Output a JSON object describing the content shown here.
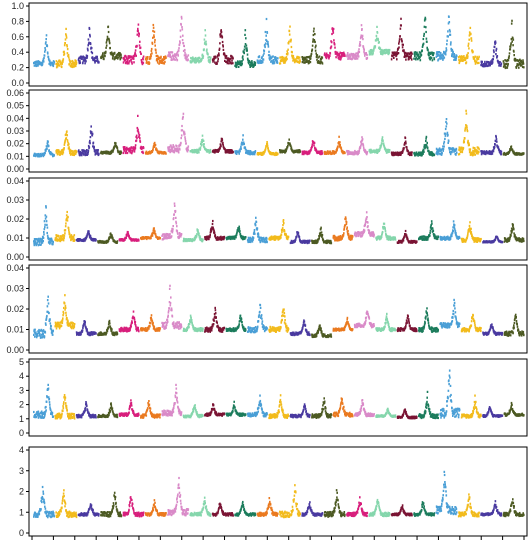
{
  "chart_data": [
    {
      "type": "scatter",
      "ylim": [
        0,
        1.0
      ],
      "yticks": [
        "0.0",
        "0.2",
        "0.4",
        "0.6",
        "0.8",
        "1.0"
      ],
      "ytick_values": [
        0,
        0.2,
        0.4,
        0.6,
        0.8,
        1.0
      ],
      "grid": false,
      "segments": [
        {
          "color": "#4a9fd6",
          "base": 0.25,
          "peak": 0.65
        },
        {
          "color": "#f2bb1c",
          "base": 0.25,
          "peak": 0.75
        },
        {
          "color": "#4a3aa0",
          "base": 0.3,
          "peak": 0.8
        },
        {
          "color": "#4d5a23",
          "base": 0.35,
          "peak": 0.82
        },
        {
          "color": "#d81f7c",
          "base": 0.3,
          "peak": 0.92
        },
        {
          "color": "#ea7a20",
          "base": 0.3,
          "peak": 0.85
        },
        {
          "color": "#d98ac8",
          "base": 0.35,
          "peak": 0.95
        },
        {
          "color": "#85d6ac",
          "base": 0.3,
          "peak": 0.7
        },
        {
          "color": "#7a1434",
          "base": 0.3,
          "peak": 0.9
        },
        {
          "color": "#1c7c5c",
          "base": 0.25,
          "peak": 0.7
        },
        {
          "color": "#4a9fd6",
          "base": 0.3,
          "peak": 0.85
        },
        {
          "color": "#f2bb1c",
          "base": 0.3,
          "peak": 0.8
        },
        {
          "color": "#4d5a23",
          "base": 0.3,
          "peak": 0.8
        },
        {
          "color": "#d81f7c",
          "base": 0.35,
          "peak": 0.85
        },
        {
          "color": "#d98ac8",
          "base": 0.35,
          "peak": 0.8
        },
        {
          "color": "#85d6ac",
          "base": 0.4,
          "peak": 0.75
        },
        {
          "color": "#7a1434",
          "base": 0.35,
          "peak": 0.88
        },
        {
          "color": "#1c7c5c",
          "base": 0.35,
          "peak": 0.95
        },
        {
          "color": "#4a9fd6",
          "base": 0.35,
          "peak": 0.97
        },
        {
          "color": "#f2bb1c",
          "base": 0.3,
          "peak": 0.85
        },
        {
          "color": "#4a3aa0",
          "base": 0.25,
          "peak": 0.6
        },
        {
          "color": "#4d5a23",
          "base": 0.25,
          "peak": 0.85
        }
      ]
    },
    {
      "type": "scatter",
      "ylim": [
        0,
        0.06
      ],
      "yticks": [
        "0.00",
        "0.01",
        "0.02",
        "0.03",
        "0.04",
        "0.05",
        "0.06"
      ],
      "ytick_values": [
        0,
        0.01,
        0.02,
        0.03,
        0.04,
        0.05,
        0.06
      ],
      "grid": false,
      "segments": [
        {
          "color": "#4a9fd6",
          "base": 0.011,
          "peak": 0.024
        },
        {
          "color": "#f2bb1c",
          "base": 0.013,
          "peak": 0.035
        },
        {
          "color": "#4a3aa0",
          "base": 0.013,
          "peak": 0.038
        },
        {
          "color": "#4d5a23",
          "base": 0.013,
          "peak": 0.024
        },
        {
          "color": "#d81f7c",
          "base": 0.015,
          "peak": 0.042
        },
        {
          "color": "#ea7a20",
          "base": 0.013,
          "peak": 0.022
        },
        {
          "color": "#d98ac8",
          "base": 0.016,
          "peak": 0.048
        },
        {
          "color": "#85d6ac",
          "base": 0.014,
          "peak": 0.028
        },
        {
          "color": "#7a1434",
          "base": 0.014,
          "peak": 0.026
        },
        {
          "color": "#4a9fd6",
          "base": 0.013,
          "peak": 0.028
        },
        {
          "color": "#f2bb1c",
          "base": 0.012,
          "peak": 0.022
        },
        {
          "color": "#4d5a23",
          "base": 0.014,
          "peak": 0.025
        },
        {
          "color": "#d81f7c",
          "base": 0.013,
          "peak": 0.026
        },
        {
          "color": "#ea7a20",
          "base": 0.013,
          "peak": 0.025
        },
        {
          "color": "#d98ac8",
          "base": 0.013,
          "peak": 0.028
        },
        {
          "color": "#85d6ac",
          "base": 0.014,
          "peak": 0.028
        },
        {
          "color": "#7a1434",
          "base": 0.012,
          "peak": 0.025
        },
        {
          "color": "#1c7c5c",
          "base": 0.012,
          "peak": 0.027
        },
        {
          "color": "#4a9fd6",
          "base": 0.014,
          "peak": 0.045
        },
        {
          "color": "#f2bb1c",
          "base": 0.014,
          "peak": 0.049
        },
        {
          "color": "#4a3aa0",
          "base": 0.013,
          "peak": 0.028
        },
        {
          "color": "#4d5a23",
          "base": 0.012,
          "peak": 0.02
        }
      ]
    },
    {
      "type": "scatter",
      "ylim": [
        0,
        0.04
      ],
      "yticks": [
        "0.00",
        "0.01",
        "0.02",
        "0.03",
        "0.04"
      ],
      "ytick_values": [
        0,
        0.01,
        0.02,
        0.03,
        0.04
      ],
      "grid": false,
      "segments": [
        {
          "color": "#4a9fd6",
          "base": 0.008,
          "peak": 0.028
        },
        {
          "color": "#f2bb1c",
          "base": 0.01,
          "peak": 0.028
        },
        {
          "color": "#4a3aa0",
          "base": 0.009,
          "peak": 0.015
        },
        {
          "color": "#4d5a23",
          "base": 0.008,
          "peak": 0.014
        },
        {
          "color": "#d81f7c",
          "base": 0.009,
          "peak": 0.014
        },
        {
          "color": "#ea7a20",
          "base": 0.01,
          "peak": 0.016
        },
        {
          "color": "#d98ac8",
          "base": 0.011,
          "peak": 0.03
        },
        {
          "color": "#85d6ac",
          "base": 0.009,
          "peak": 0.016
        },
        {
          "color": "#7a1434",
          "base": 0.01,
          "peak": 0.02
        },
        {
          "color": "#1c7c5c",
          "base": 0.01,
          "peak": 0.018
        },
        {
          "color": "#4a9fd6",
          "base": 0.009,
          "peak": 0.022
        },
        {
          "color": "#f2bb1c",
          "base": 0.01,
          "peak": 0.02
        },
        {
          "color": "#4a3aa0",
          "base": 0.008,
          "peak": 0.015
        },
        {
          "color": "#4d5a23",
          "base": 0.008,
          "peak": 0.016
        },
        {
          "color": "#ea7a20",
          "base": 0.01,
          "peak": 0.024
        },
        {
          "color": "#d98ac8",
          "base": 0.012,
          "peak": 0.025
        },
        {
          "color": "#85d6ac",
          "base": 0.01,
          "peak": 0.02
        },
        {
          "color": "#7a1434",
          "base": 0.008,
          "peak": 0.014
        },
        {
          "color": "#1c7c5c",
          "base": 0.01,
          "peak": 0.02
        },
        {
          "color": "#4a9fd6",
          "base": 0.01,
          "peak": 0.02
        },
        {
          "color": "#f2bb1c",
          "base": 0.009,
          "peak": 0.02
        },
        {
          "color": "#4a3aa0",
          "base": 0.008,
          "peak": 0.012
        },
        {
          "color": "#4d5a23",
          "base": 0.009,
          "peak": 0.02
        }
      ]
    },
    {
      "type": "scatter",
      "ylim": [
        0,
        0.04
      ],
      "yticks": [
        "0.00",
        "0.01",
        "0.02",
        "0.03",
        "0.04"
      ],
      "ytick_values": [
        0,
        0.01,
        0.02,
        0.03,
        0.04
      ],
      "grid": false,
      "segments": [
        {
          "color": "#4a9fd6",
          "base": 0.008,
          "peak": 0.03
        },
        {
          "color": "#f2bb1c",
          "base": 0.012,
          "peak": 0.028
        },
        {
          "color": "#4a3aa0",
          "base": 0.008,
          "peak": 0.016
        },
        {
          "color": "#4d5a23",
          "base": 0.008,
          "peak": 0.016
        },
        {
          "color": "#d81f7c",
          "base": 0.01,
          "peak": 0.02
        },
        {
          "color": "#ea7a20",
          "base": 0.01,
          "peak": 0.018
        },
        {
          "color": "#d98ac8",
          "base": 0.012,
          "peak": 0.032
        },
        {
          "color": "#85d6ac",
          "base": 0.01,
          "peak": 0.018
        },
        {
          "color": "#7a1434",
          "base": 0.01,
          "peak": 0.022
        },
        {
          "color": "#1c7c5c",
          "base": 0.01,
          "peak": 0.018
        },
        {
          "color": "#4a9fd6",
          "base": 0.01,
          "peak": 0.025
        },
        {
          "color": "#f2bb1c",
          "base": 0.01,
          "peak": 0.025
        },
        {
          "color": "#4a3aa0",
          "base": 0.008,
          "peak": 0.016
        },
        {
          "color": "#4d5a23",
          "base": 0.007,
          "peak": 0.014
        },
        {
          "color": "#ea7a20",
          "base": 0.01,
          "peak": 0.016
        },
        {
          "color": "#d98ac8",
          "base": 0.012,
          "peak": 0.022
        },
        {
          "color": "#85d6ac",
          "base": 0.01,
          "peak": 0.018
        },
        {
          "color": "#7a1434",
          "base": 0.01,
          "peak": 0.018
        },
        {
          "color": "#1c7c5c",
          "base": 0.01,
          "peak": 0.022
        },
        {
          "color": "#4a9fd6",
          "base": 0.012,
          "peak": 0.025
        },
        {
          "color": "#f2bb1c",
          "base": 0.01,
          "peak": 0.02
        },
        {
          "color": "#4a3aa0",
          "base": 0.008,
          "peak": 0.014
        },
        {
          "color": "#4d5a23",
          "base": 0.008,
          "peak": 0.02
        }
      ]
    },
    {
      "type": "scatter",
      "ylim": [
        0,
        5
      ],
      "yticks": [
        "0",
        "1",
        "2",
        "3",
        "4",
        "5"
      ],
      "ytick_values": [
        0,
        1,
        2,
        3,
        4,
        5
      ],
      "grid": false,
      "segments": [
        {
          "color": "#4a9fd6",
          "base": 1.3,
          "peak": 3.8
        },
        {
          "color": "#f2bb1c",
          "base": 1.2,
          "peak": 3.2
        },
        {
          "color": "#4a3aa0",
          "base": 1.2,
          "peak": 2.3
        },
        {
          "color": "#4d5a23",
          "base": 1.2,
          "peak": 2.2
        },
        {
          "color": "#d81f7c",
          "base": 1.3,
          "peak": 2.4
        },
        {
          "color": "#ea7a20",
          "base": 1.2,
          "peak": 2.5
        },
        {
          "color": "#d98ac8",
          "base": 1.4,
          "peak": 3.5
        },
        {
          "color": "#85d6ac",
          "base": 1.2,
          "peak": 2.2
        },
        {
          "color": "#7a1434",
          "base": 1.3,
          "peak": 2.2
        },
        {
          "color": "#1c7c5c",
          "base": 1.3,
          "peak": 2.2
        },
        {
          "color": "#4a9fd6",
          "base": 1.3,
          "peak": 2.7
        },
        {
          "color": "#f2bb1c",
          "base": 1.2,
          "peak": 2.8
        },
        {
          "color": "#4a3aa0",
          "base": 1.2,
          "peak": 2.2
        },
        {
          "color": "#4d5a23",
          "base": 1.2,
          "peak": 2.7
        },
        {
          "color": "#ea7a20",
          "base": 1.3,
          "peak": 2.9
        },
        {
          "color": "#d98ac8",
          "base": 1.3,
          "peak": 2.5
        },
        {
          "color": "#85d6ac",
          "base": 1.2,
          "peak": 1.8
        },
        {
          "color": "#7a1434",
          "base": 1.1,
          "peak": 1.8
        },
        {
          "color": "#1c7c5c",
          "base": 1.2,
          "peak": 2.8
        },
        {
          "color": "#4a9fd6",
          "base": 1.4,
          "peak": 5.0
        },
        {
          "color": "#f2bb1c",
          "base": 1.2,
          "peak": 2.6
        },
        {
          "color": "#4a3aa0",
          "base": 1.2,
          "peak": 2.0
        },
        {
          "color": "#4d5a23",
          "base": 1.3,
          "peak": 2.2
        }
      ]
    },
    {
      "type": "scatter",
      "ylim": [
        0,
        4
      ],
      "yticks": [
        "0",
        "1",
        "2",
        "3",
        "4"
      ],
      "ytick_values": [
        0,
        1,
        2,
        3,
        4
      ],
      "grid": false,
      "segments": [
        {
          "color": "#4a9fd6",
          "base": 0.9,
          "peak": 2.4
        },
        {
          "color": "#f2bb1c",
          "base": 0.9,
          "peak": 2.4
        },
        {
          "color": "#4a3aa0",
          "base": 0.9,
          "peak": 1.6
        },
        {
          "color": "#4d5a23",
          "base": 0.9,
          "peak": 2.2
        },
        {
          "color": "#d81f7c",
          "base": 0.9,
          "peak": 2.0
        },
        {
          "color": "#ea7a20",
          "base": 0.9,
          "peak": 1.6
        },
        {
          "color": "#d98ac8",
          "base": 1.0,
          "peak": 2.8
        },
        {
          "color": "#85d6ac",
          "base": 0.9,
          "peak": 1.8
        },
        {
          "color": "#7a1434",
          "base": 0.9,
          "peak": 1.6
        },
        {
          "color": "#1c7c5c",
          "base": 0.9,
          "peak": 1.6
        },
        {
          "color": "#ea7a20",
          "base": 0.9,
          "peak": 1.8
        },
        {
          "color": "#f2bb1c",
          "base": 0.9,
          "peak": 2.4
        },
        {
          "color": "#4a3aa0",
          "base": 0.9,
          "peak": 1.6
        },
        {
          "color": "#4d5a23",
          "base": 0.9,
          "peak": 2.2
        },
        {
          "color": "#d81f7c",
          "base": 0.9,
          "peak": 1.8
        },
        {
          "color": "#85d6ac",
          "base": 0.9,
          "peak": 1.8
        },
        {
          "color": "#7a1434",
          "base": 0.9,
          "peak": 1.4
        },
        {
          "color": "#1c7c5c",
          "base": 0.9,
          "peak": 1.6
        },
        {
          "color": "#4a9fd6",
          "base": 1.1,
          "peak": 3.2
        },
        {
          "color": "#f2bb1c",
          "base": 0.9,
          "peak": 2.0
        },
        {
          "color": "#4a3aa0",
          "base": 0.9,
          "peak": 1.6
        },
        {
          "color": "#4d5a23",
          "base": 0.9,
          "peak": 1.8
        }
      ]
    }
  ]
}
